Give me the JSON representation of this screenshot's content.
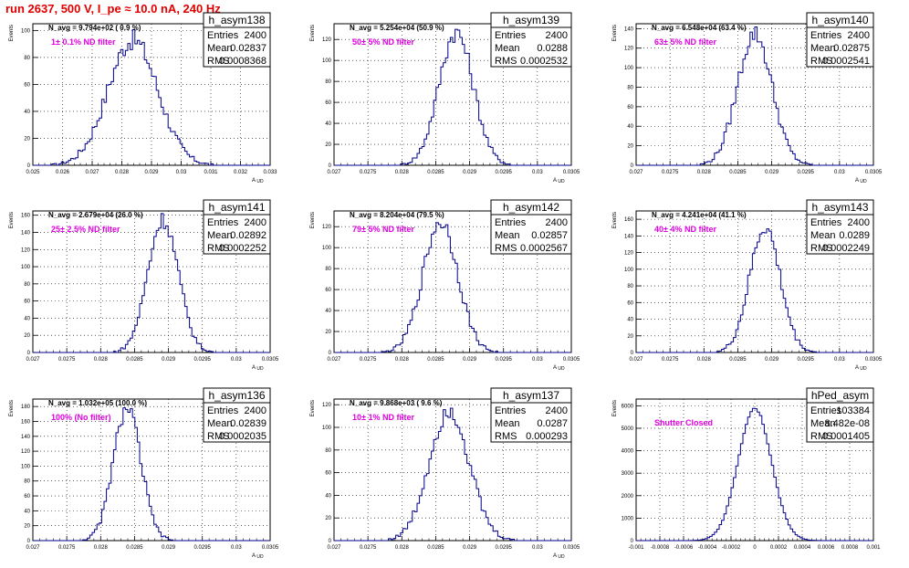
{
  "header": {
    "title": "run 2637,   500 V, I_pe ≈ 10.0 nA, 240 Hz"
  },
  "chart_data": [
    {
      "type": "histogram",
      "name": "h_asym138",
      "entries": "2400",
      "mean": "0.02837",
      "rms": "0.0008368",
      "navg": "N_avg = 9.794e+02 ( 0.9 %)",
      "filter": "1± 0.1% ND filter",
      "xlim": [
        0.025,
        0.033
      ],
      "ylim": [
        0,
        105
      ],
      "xticks": [
        "0.025",
        "0.026",
        "0.027",
        "0.028",
        "0.029",
        "0.03",
        "0.031",
        "0.032",
        "0.033"
      ],
      "xtick_vals": [
        0.025,
        0.026,
        0.027,
        0.028,
        0.029,
        0.03,
        0.031,
        0.032,
        0.033
      ],
      "yticks": [
        0,
        20,
        40,
        60,
        80,
        100
      ],
      "xlabel": "A_UD",
      "ylabel": "Events",
      "peak": 93,
      "sigma": 0.0008368
    },
    {
      "type": "histogram",
      "name": "h_asym139",
      "entries": "2400",
      "mean": "0.0288",
      "rms": "0.0002532",
      "navg": "N_avg = 5.254e+04 (50.9 %)",
      "filter": "50± 5% ND filter",
      "xlim": [
        0.027,
        0.0305
      ],
      "ylim": [
        0,
        135
      ],
      "xticks": [
        "0.027",
        "0.0275",
        "0.028",
        "0.0285",
        "0.029",
        "0.0295",
        "0.03",
        "0.0305"
      ],
      "xtick_vals": [
        0.027,
        0.0275,
        0.028,
        0.0285,
        0.029,
        0.0295,
        0.03,
        0.0305
      ],
      "yticks": [
        0,
        20,
        40,
        60,
        80,
        100,
        120
      ],
      "xlabel": "A_UD",
      "ylabel": "Events",
      "peak": 127,
      "sigma": 0.0002532
    },
    {
      "type": "histogram",
      "name": "h_asym140",
      "entries": "2400",
      "mean": "0.02875",
      "rms": "0.0002541",
      "navg": "N_avg = 6.548e+04 (63.4 %)",
      "filter": "63± 5% ND filter",
      "xlim": [
        0.027,
        0.0305
      ],
      "ylim": [
        0,
        145
      ],
      "xticks": [
        "0.027",
        "0.0275",
        "0.028",
        "0.0285",
        "0.029",
        "0.0295",
        "0.03",
        "0.0305"
      ],
      "xtick_vals": [
        0.027,
        0.0275,
        0.028,
        0.0285,
        0.029,
        0.0295,
        0.03,
        0.0305
      ],
      "yticks": [
        0,
        20,
        40,
        60,
        80,
        100,
        120,
        140
      ],
      "xlabel": "A_UD",
      "ylabel": "Events",
      "peak": 135,
      "sigma": 0.0002541
    },
    {
      "type": "histogram",
      "name": "h_asym141",
      "entries": "2400",
      "mean": "0.02892",
      "rms": "0.0002252",
      "navg": "N_avg = 2.679e+04 (26.0 %)",
      "filter": "25± 2.5% ND filter",
      "xlim": [
        0.027,
        0.0305
      ],
      "ylim": [
        0,
        165
      ],
      "xticks": [
        "0.027",
        "0.0275",
        "0.028",
        "0.0285",
        "0.029",
        "0.0295",
        "0.03",
        "0.0305"
      ],
      "xtick_vals": [
        0.027,
        0.0275,
        0.028,
        0.0285,
        0.029,
        0.0295,
        0.03,
        0.0305
      ],
      "yticks": [
        0,
        20,
        40,
        60,
        80,
        100,
        120,
        140,
        160
      ],
      "xlabel": "A_UD",
      "ylabel": "Events",
      "peak": 155,
      "sigma": 0.0002252
    },
    {
      "type": "histogram",
      "name": "h_asym142",
      "entries": "2400",
      "mean": "0.02857",
      "rms": "0.0002567",
      "navg": "N_avg = 8.204e+04 (79.5 %)",
      "filter": "79± 5% ND filter",
      "xlim": [
        0.027,
        0.0305
      ],
      "ylim": [
        0,
        135
      ],
      "xticks": [
        "0.027",
        "0.0275",
        "0.028",
        "0.0285",
        "0.029",
        "0.0295",
        "0.03",
        "0.0305"
      ],
      "xtick_vals": [
        0.027,
        0.0275,
        0.028,
        0.0285,
        0.029,
        0.0295,
        0.03,
        0.0305
      ],
      "yticks": [
        0,
        20,
        40,
        60,
        80,
        100,
        120
      ],
      "xlabel": "A_UD",
      "ylabel": "Events",
      "peak": 125,
      "sigma": 0.0002567
    },
    {
      "type": "histogram",
      "name": "h_asym143",
      "entries": "2400",
      "mean": "0.0289",
      "rms": "0.0002249",
      "navg": "N_avg = 4.241e+04 (41.1 %)",
      "filter": "40± 4% ND filter",
      "xlim": [
        0.027,
        0.0305
      ],
      "ylim": [
        0,
        170
      ],
      "xticks": [
        "0.027",
        "0.0275",
        "0.028",
        "0.0285",
        "0.029",
        "0.0295",
        "0.03",
        "0.0305"
      ],
      "xtick_vals": [
        0.027,
        0.0275,
        0.028,
        0.0285,
        0.029,
        0.0295,
        0.03,
        0.0305
      ],
      "yticks": [
        0,
        20,
        40,
        60,
        80,
        100,
        120,
        140,
        160
      ],
      "xlabel": "A_UD",
      "ylabel": "Events",
      "peak": 150,
      "sigma": 0.0002249
    },
    {
      "type": "histogram",
      "name": "h_asym136",
      "entries": "2400",
      "mean": "0.02839",
      "rms": "0.0002035",
      "navg": "N_avg = 1.032e+05 (100.0 %)",
      "filter": "100% (No filter)",
      "xlim": [
        0.027,
        0.0305
      ],
      "ylim": [
        0,
        190
      ],
      "xticks": [
        "0.027",
        "0.0275",
        "0.028",
        "0.0285",
        "0.029",
        "0.0295",
        "0.03",
        "0.0305"
      ],
      "xtick_vals": [
        0.027,
        0.0275,
        0.028,
        0.0285,
        0.029,
        0.0295,
        0.03,
        0.0305
      ],
      "yticks": [
        0,
        20,
        40,
        60,
        80,
        100,
        120,
        140,
        160,
        180
      ],
      "xlabel": "A_UD",
      "ylabel": "Events",
      "peak": 178,
      "sigma": 0.0002035
    },
    {
      "type": "histogram",
      "name": "h_asym137",
      "entries": "2400",
      "mean": "0.0287",
      "rms": "0.000293",
      "navg": "N_avg = 9.868e+03 ( 9.6 %)",
      "filter": "10± 1% ND filter",
      "xlim": [
        0.027,
        0.0305
      ],
      "ylim": [
        0,
        125
      ],
      "xticks": [
        "0.027",
        "0.0275",
        "0.028",
        "0.0285",
        "0.029",
        "0.0295",
        "0.03",
        "0.0305"
      ],
      "xtick_vals": [
        0.027,
        0.0275,
        0.028,
        0.0285,
        0.029,
        0.0295,
        0.03,
        0.0305
      ],
      "yticks": [
        0,
        20,
        40,
        60,
        80,
        100,
        120
      ],
      "xlabel": "A_UD",
      "ylabel": "Events",
      "peak": 116,
      "sigma": 0.000293
    },
    {
      "type": "histogram",
      "name": "hPed_asym",
      "entries": "103384",
      "mean": "8.482e-08",
      "rms": "0.0001405",
      "navg": "",
      "filter": "Shutter Closed",
      "xlim": [
        -0.001,
        0.001
      ],
      "ylim": [
        0,
        6300
      ],
      "xticks": [
        "-0.001",
        "-0.0008",
        "-0.0006",
        "-0.0004",
        "-0.0002",
        "0",
        "0.0002",
        "0.0004",
        "0.0006",
        "0.0008",
        "0.001"
      ],
      "xtick_vals": [
        -0.001,
        -0.0008,
        -0.0006,
        -0.0004,
        -0.0002,
        0,
        0.0002,
        0.0004,
        0.0006,
        0.0008,
        0.001
      ],
      "yticks": [
        0,
        1000,
        2000,
        3000,
        4000,
        5000,
        6000
      ],
      "xlabel": "",
      "ylabel": "Events",
      "peak": 5900,
      "sigma": 0.0001405
    }
  ],
  "stat_labels": {
    "entries": "Entries",
    "mean": "Mean",
    "rms": "RMS"
  }
}
